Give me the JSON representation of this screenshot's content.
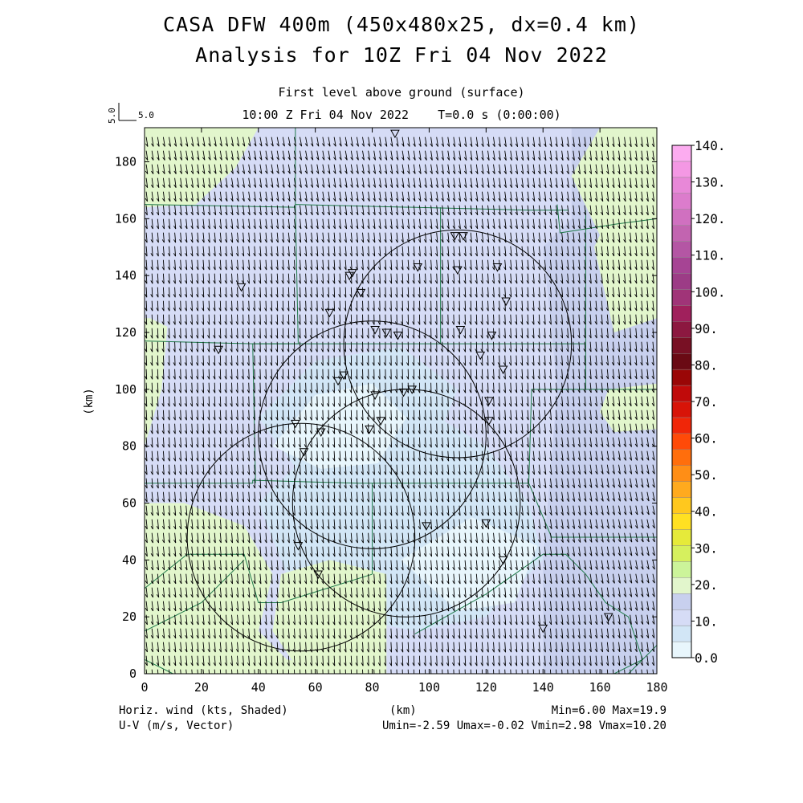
{
  "titles": {
    "line1": "CASA DFW 400m (450x480x25, dx=0.4 km)",
    "line2": "Analysis for 10Z Fri 04 Nov 2022",
    "level": "First level above ground (surface)",
    "time": "10:00 Z Fri 04 Nov 2022    T=0.0 s (0:00:00)"
  },
  "footer": {
    "left1": "Horiz. wind (kts, Shaded)",
    "left2": "U-V (m/s, Vector)",
    "center": "(km)",
    "right1": "Min=6.00 Max=19.9",
    "right2": "Umin=-2.59 Umax=-0.02 Vmin=2.98 Vmax=10.20"
  },
  "vector_key": {
    "vertical": "5.0",
    "horizontal": "5.0"
  },
  "chart_data": {
    "type": "heatmap",
    "title": "Horiz. wind (kts, Shaded)",
    "xlabel": "(km)",
    "ylabel": "(km)",
    "xlim": [
      0,
      180
    ],
    "ylim": [
      0,
      192
    ],
    "x_ticks": [
      0,
      20,
      40,
      60,
      80,
      100,
      120,
      140,
      160,
      180
    ],
    "y_ticks": [
      0,
      20,
      40,
      60,
      80,
      100,
      120,
      140,
      160,
      180
    ],
    "x_tick_labels": [
      "0",
      "20",
      "40",
      "60",
      "80",
      "100",
      "120",
      "140",
      "160",
      "180"
    ],
    "y_tick_labels": [
      "0",
      "20",
      "40",
      "60",
      "80",
      "100",
      "120",
      "140",
      "160",
      "180"
    ],
    "colorbar": {
      "labels": [
        "0.0",
        "10.",
        "20.",
        "30.",
        "40.",
        "50.",
        "60.",
        "70.",
        "80.",
        "90.",
        "100.",
        "110.",
        "120.",
        "130.",
        "140."
      ],
      "colors": [
        "#e8f6fc",
        "#d2e6f6",
        "#d6dcf6",
        "#c8d0ee",
        "#e2f6cc",
        "#ccf49a",
        "#d6f05e",
        "#e6ea3a",
        "#ffe022",
        "#ffc81e",
        "#ffaa1e",
        "#ff8e16",
        "#ff6e0c",
        "#ff4a08",
        "#f02608",
        "#d81408",
        "#c00a0a",
        "#9a0606",
        "#6a0a14",
        "#781024",
        "#8c1840",
        "#a0205c",
        "#a03478",
        "#9c3c86",
        "#a64494",
        "#b456a4",
        "#c264b0",
        "#d070c0",
        "#dc7ccc",
        "#e888d8",
        "#f498e4",
        "#fcacf0"
      ]
    },
    "contour_levels": [
      10,
      20
    ],
    "field_stats": {
      "min": 6.0,
      "max": 19.9,
      "umin": -2.59,
      "umax": -0.02,
      "vmin": 2.98,
      "vmax": 10.2
    },
    "radar_circles": [
      {
        "center": [
          110,
          116
        ],
        "radius_km": 40
      },
      {
        "center": [
          80,
          84
        ],
        "radius_km": 40
      },
      {
        "center": [
          92,
          60
        ],
        "radius_km": 40
      },
      {
        "center": [
          55,
          48
        ],
        "radius_km": 40
      }
    ],
    "stations": [
      [
        53,
        88
      ],
      [
        62,
        85
      ],
      [
        56,
        78
      ],
      [
        70,
        105
      ],
      [
        68,
        103
      ],
      [
        65,
        127
      ],
      [
        73,
        141
      ],
      [
        72,
        140
      ],
      [
        76,
        134
      ],
      [
        81,
        121
      ],
      [
        85,
        120
      ],
      [
        89,
        119
      ],
      [
        81,
        98
      ],
      [
        79,
        86
      ],
      [
        83,
        89
      ],
      [
        91,
        99
      ],
      [
        94,
        100
      ],
      [
        96,
        143
      ],
      [
        110,
        142
      ],
      [
        109,
        154
      ],
      [
        112,
        154
      ],
      [
        111,
        121
      ],
      [
        118,
        112
      ],
      [
        122,
        119
      ],
      [
        124,
        143
      ],
      [
        127,
        131
      ],
      [
        126,
        107
      ],
      [
        121,
        96
      ],
      [
        121,
        89
      ],
      [
        99,
        52
      ],
      [
        120,
        53
      ],
      [
        126,
        40
      ],
      [
        61,
        35
      ],
      [
        54,
        45
      ],
      [
        26,
        114
      ],
      [
        34,
        136
      ],
      [
        140,
        16
      ],
      [
        163,
        20
      ],
      [
        88,
        190
      ]
    ]
  }
}
